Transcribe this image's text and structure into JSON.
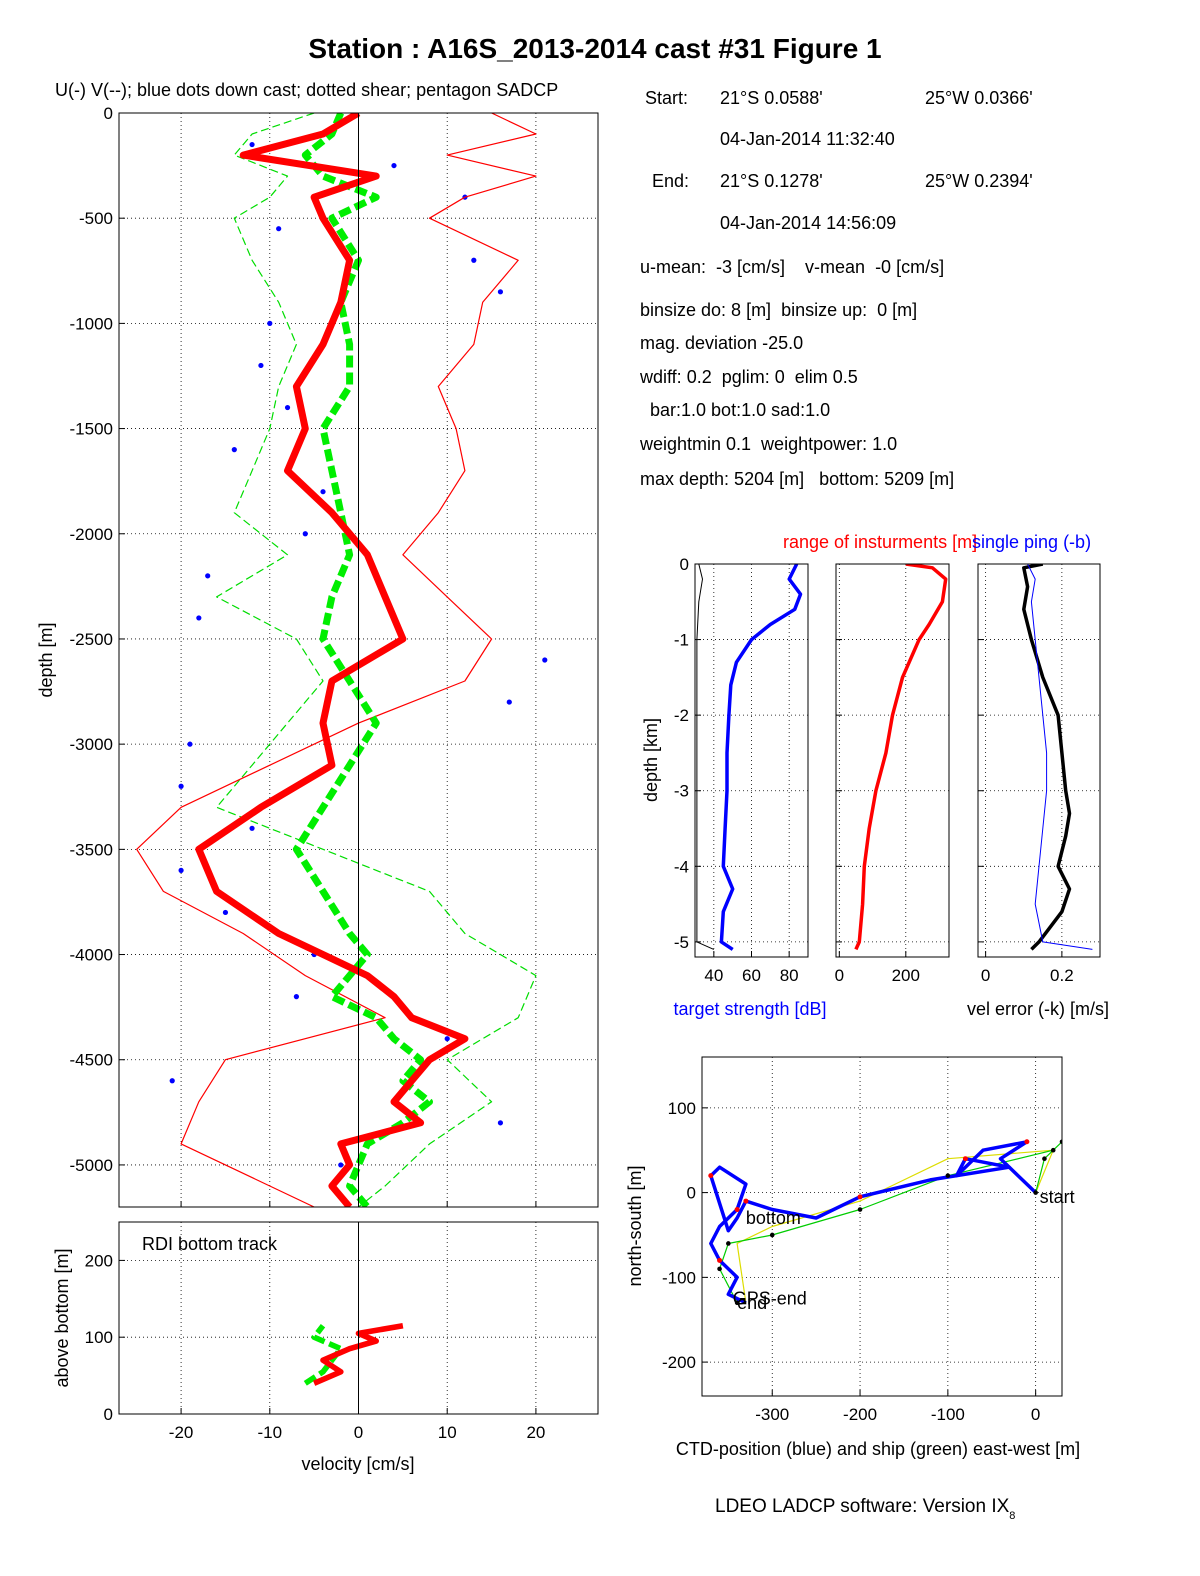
{
  "title": "Station : A16S_2013-2014 cast #31  Figure 1",
  "footer": "LDEO LADCP software: Version IX",
  "footer_sub": "8",
  "info": {
    "start_label": "Start:",
    "start_lat": "21°S  0.0588'",
    "start_lon": "25°W  0.0366'",
    "start_time": "04-Jan-2014 11:32:40",
    "end_label": "End:",
    "end_lat": "21°S  0.1278'",
    "end_lon": "25°W  0.2394'",
    "end_time": "04-Jan-2014 14:56:09",
    "lines": [
      "u-mean:  -3 [cm/s]    v-mean  -0 [cm/s]",
      "binsize do: 8 [m]  binsize up:  0 [m]",
      "mag. deviation -25.0",
      "wdiff: 0.2  pglim: 0  elim 0.5",
      "  bar:1.0 bot:1.0 sad:1.0",
      "weightmin 0.1  weightpower: 1.0",
      "max depth: 5204 [m]   bottom: 5209 [m]"
    ]
  },
  "chart_data": [
    {
      "id": "velocity_profile",
      "type": "line",
      "title": "U(-) V(--); blue dots down cast; dotted shear; pentagon SADCP",
      "xlabel": "",
      "ylabel": "depth [m]",
      "xlim": [
        -27,
        27
      ],
      "ylim": [
        -5200,
        0
      ],
      "xticks": [
        -20,
        -10,
        0,
        10,
        20
      ],
      "yticks": [
        0,
        -500,
        -1000,
        -1500,
        -2000,
        -2500,
        -3000,
        -3500,
        -4000,
        -4500,
        -5000
      ],
      "grid": true,
      "series": [
        {
          "style": "thick-red-solid",
          "color": "#ff0000",
          "depth": [
            0,
            -100,
            -200,
            -300,
            -400,
            -500,
            -700,
            -900,
            -1100,
            -1300,
            -1500,
            -1700,
            -1900,
            -2100,
            -2300,
            -2500,
            -2700,
            -2900,
            -3100,
            -3300,
            -3500,
            -3700,
            -3900,
            -4000,
            -4100,
            -4200,
            -4300,
            -4400,
            -4500,
            -4600,
            -4700,
            -4800,
            -4900,
            -5000,
            -5100,
            -5200
          ],
          "values": [
            0,
            -4,
            -13,
            2,
            -5,
            -4,
            -1,
            -2,
            -4,
            -7,
            -6,
            -8,
            -3,
            1,
            3,
            5,
            -3,
            -4,
            -3,
            -11,
            -18,
            -16,
            -9,
            -4,
            1,
            4,
            6,
            12,
            8,
            6,
            4,
            7,
            -2,
            -1,
            -3,
            -1
          ]
        },
        {
          "style": "thick-green-dashed",
          "color": "#00ee00",
          "depth": [
            0,
            -100,
            -200,
            -300,
            -400,
            -500,
            -700,
            -900,
            -1100,
            -1300,
            -1500,
            -1700,
            -1900,
            -2100,
            -2300,
            -2500,
            -2700,
            -2900,
            -3100,
            -3300,
            -3500,
            -3700,
            -3900,
            -4000,
            -4100,
            -4200,
            -4300,
            -4400,
            -4500,
            -4600,
            -4700,
            -4800,
            -4900,
            -5000,
            -5100,
            -5200
          ],
          "values": [
            -2,
            -3,
            -6,
            -4,
            2,
            -3,
            0,
            -2,
            -1,
            -1,
            -4,
            -3,
            -2,
            -1,
            -3,
            -4,
            -1,
            2,
            -1,
            -4,
            -7,
            -4,
            -1,
            1,
            -1,
            -3,
            2,
            4,
            7,
            5,
            8,
            5,
            1,
            0,
            -1,
            1
          ]
        },
        {
          "style": "thin-red",
          "color": "#ff0000",
          "depth": [
            0,
            -100,
            -200,
            -300,
            -400,
            -500,
            -700,
            -900,
            -1100,
            -1300,
            -1500,
            -1700,
            -1900,
            -2100,
            -2300,
            -2500,
            -2700,
            -2900,
            -3100,
            -3300,
            -3500,
            -3700,
            -3900,
            -4100,
            -4300,
            -4500,
            -4700,
            -4900,
            -5100,
            -5200
          ],
          "values": [
            15,
            20,
            10,
            20,
            12,
            8,
            18,
            14,
            13,
            9,
            11,
            12,
            9,
            5,
            10,
            15,
            12,
            0,
            -10,
            -20,
            -25,
            -22,
            -13,
            -6,
            3,
            -15,
            -18,
            -20,
            -10,
            -5
          ]
        },
        {
          "style": "thin-green",
          "color": "#00dd00",
          "depth": [
            0,
            -100,
            -200,
            -300,
            -400,
            -500,
            -700,
            -900,
            -1100,
            -1300,
            -1500,
            -1700,
            -1900,
            -2100,
            -2300,
            -2500,
            -2700,
            -2900,
            -3100,
            -3300,
            -3500,
            -3700,
            -3900,
            -4100,
            -4300,
            -4500,
            -4700,
            -4900,
            -5100,
            -5200
          ],
          "values": [
            -5,
            -12,
            -14,
            -8,
            -10,
            -14,
            -12,
            -9,
            -7,
            -9,
            -10,
            -12,
            -14,
            -8,
            -16,
            -7,
            -4,
            -8,
            -12,
            -16,
            -4,
            8,
            12,
            20,
            18,
            10,
            15,
            8,
            3,
            0
          ]
        },
        {
          "style": "blue-dots",
          "color": "#0000ff",
          "depth": [
            -150,
            -250,
            -400,
            -550,
            -700,
            -850,
            -1000,
            -1200,
            -1400,
            -1600,
            -1800,
            -2000,
            -2200,
            -2400,
            -2600,
            -2800,
            -3000,
            -3200,
            -3400,
            -3600,
            -3800,
            -4000,
            -4200,
            -4400,
            -4600,
            -4800,
            -5000
          ],
          "values": [
            -12,
            4,
            12,
            -9,
            13,
            16,
            -10,
            -11,
            -8,
            -14,
            -4,
            -6,
            -17,
            -18,
            21,
            17,
            -19,
            -20,
            -12,
            -20,
            -15,
            -5,
            -7,
            10,
            -21,
            16,
            -2
          ]
        }
      ]
    },
    {
      "id": "bottom_track",
      "type": "line",
      "title": "RDI bottom track",
      "xlabel": "velocity [cm/s]",
      "ylabel": "above bottom [m]",
      "xlim": [
        -27,
        27
      ],
      "ylim": [
        0,
        250
      ],
      "xticks": [
        -20,
        -10,
        0,
        10,
        20
      ],
      "yticks": [
        0,
        100,
        200
      ],
      "grid": true,
      "series": [
        {
          "style": "thick-red-solid",
          "color": "#ff0000",
          "height": [
            40,
            55,
            70,
            85,
            95,
            105,
            115
          ],
          "values": [
            -5,
            -2,
            -4,
            -1,
            2,
            0,
            5
          ]
        },
        {
          "style": "thick-green-dashed",
          "color": "#00ee00",
          "height": [
            40,
            55,
            70,
            85,
            100,
            115
          ],
          "values": [
            -6,
            -4,
            -3,
            -2,
            -5,
            -4
          ]
        }
      ]
    },
    {
      "id": "target_strength",
      "type": "line",
      "title": "",
      "xlabel": "target strength [dB]",
      "ylabel": "depth [km]",
      "xlim": [
        30,
        90
      ],
      "ylim": [
        -5.2,
        0
      ],
      "xticks": [
        40,
        60,
        80
      ],
      "yticks": [
        0,
        -1,
        -2,
        -3,
        -4,
        -5
      ],
      "grid": true,
      "series": [
        {
          "style": "thick-blue",
          "color": "#0000ff",
          "depth": [
            0,
            -0.2,
            -0.4,
            -0.6,
            -0.8,
            -1.0,
            -1.3,
            -1.6,
            -2.0,
            -2.5,
            -3.0,
            -3.5,
            -4.0,
            -4.3,
            -4.6,
            -5.0,
            -5.1
          ],
          "values": [
            84,
            80,
            86,
            83,
            70,
            60,
            52,
            49,
            48,
            47,
            47,
            46,
            45,
            50,
            45,
            44,
            50
          ]
        },
        {
          "style": "thin-black",
          "color": "#000000",
          "depth": [
            0,
            -0.2,
            -0.5,
            -1.0,
            -2.0,
            -3.0,
            -4.0,
            -4.5,
            -5.0,
            -5.1
          ],
          "values": [
            32,
            34,
            32,
            31,
            31,
            31,
            31,
            31,
            31,
            40
          ]
        }
      ]
    },
    {
      "id": "instrument_range",
      "type": "line",
      "title": "range of insturments [m]",
      "xlabel": "",
      "ylabel": "",
      "xlim": [
        -10,
        330
      ],
      "ylim": [
        -5.2,
        0
      ],
      "xticks": [
        0,
        200
      ],
      "yticks": [
        0,
        -1,
        -2,
        -3,
        -4,
        -5
      ],
      "grid": true,
      "series": [
        {
          "style": "thick-red",
          "color": "#ff0000",
          "depth": [
            0,
            -0.05,
            -0.2,
            -0.5,
            -0.8,
            -1.0,
            -1.5,
            -2.0,
            -2.5,
            -3.0,
            -3.5,
            -4.0,
            -4.5,
            -5.0,
            -5.1
          ],
          "values": [
            200,
            280,
            320,
            310,
            270,
            240,
            190,
            160,
            140,
            110,
            90,
            75,
            70,
            60,
            50
          ]
        }
      ]
    },
    {
      "id": "velocity_error",
      "type": "line",
      "title": "single ping (-b)",
      "xlabel": "vel error (-k) [m/s]",
      "ylabel": "",
      "xlim": [
        -0.02,
        0.3
      ],
      "ylim": [
        -5.2,
        0
      ],
      "xticks": [
        0,
        0.2
      ],
      "yticks": [
        0,
        -1,
        -2,
        -3,
        -4,
        -5
      ],
      "grid": true,
      "series": [
        {
          "style": "thick-black",
          "color": "#000000",
          "depth": [
            0,
            -0.05,
            -0.3,
            -0.6,
            -1.0,
            -1.5,
            -2.0,
            -2.5,
            -3.0,
            -3.3,
            -3.6,
            -4.0,
            -4.3,
            -4.6,
            -5.0,
            -5.1
          ],
          "values": [
            0.15,
            0.1,
            0.11,
            0.1,
            0.12,
            0.15,
            0.19,
            0.2,
            0.21,
            0.22,
            0.21,
            0.19,
            0.22,
            0.2,
            0.14,
            0.12
          ]
        },
        {
          "style": "thin-blue",
          "color": "#0000ff",
          "depth": [
            0,
            -0.2,
            -0.5,
            -1.0,
            -1.5,
            -2.0,
            -2.5,
            -3.0,
            -3.5,
            -4.0,
            -4.5,
            -5.0,
            -5.1
          ],
          "values": [
            0.11,
            0.13,
            0.12,
            0.13,
            0.14,
            0.15,
            0.16,
            0.16,
            0.15,
            0.14,
            0.13,
            0.15,
            0.28
          ]
        }
      ]
    },
    {
      "id": "ctd_position",
      "type": "line",
      "title": "",
      "xlabel": "CTD-position (blue) and ship (green) east-west [m]",
      "ylabel": "north-south [m]",
      "xlim": [
        -380,
        30
      ],
      "ylim": [
        -240,
        160
      ],
      "xticks": [
        -300,
        -200,
        -100,
        0
      ],
      "yticks": [
        100,
        0,
        -100,
        -200
      ],
      "grid": true,
      "series": [
        {
          "style": "thick-blue",
          "color": "#0000ff",
          "x": [
            0,
            -20,
            -40,
            -10,
            -60,
            -90,
            -80,
            -30,
            -120,
            -200,
            -250,
            -300,
            -330,
            -340,
            -350,
            -370,
            -360,
            -330,
            -340,
            -360,
            -370,
            -360,
            -340,
            -350,
            -330
          ],
          "y": [
            0,
            20,
            40,
            60,
            50,
            20,
            40,
            30,
            15,
            -5,
            -30,
            -20,
            -10,
            -30,
            -45,
            20,
            30,
            10,
            -20,
            -40,
            -60,
            -80,
            -100,
            -120,
            -130
          ]
        },
        {
          "style": "thin-green",
          "color": "#00cc00",
          "x": [
            0,
            10,
            30,
            20,
            -100,
            -200,
            -300,
            -350,
            -360,
            -340
          ],
          "y": [
            0,
            40,
            60,
            50,
            20,
            -20,
            -50,
            -60,
            -90,
            -130
          ]
        },
        {
          "style": "thin-yellow",
          "color": "#dddd00",
          "x": [
            0,
            20,
            -100,
            -200,
            -300,
            -340,
            -330
          ],
          "y": [
            0,
            50,
            40,
            -10,
            -40,
            -60,
            -130
          ]
        }
      ],
      "annotations": [
        "start",
        "bottom",
        "GPS-end",
        "end"
      ]
    }
  ]
}
